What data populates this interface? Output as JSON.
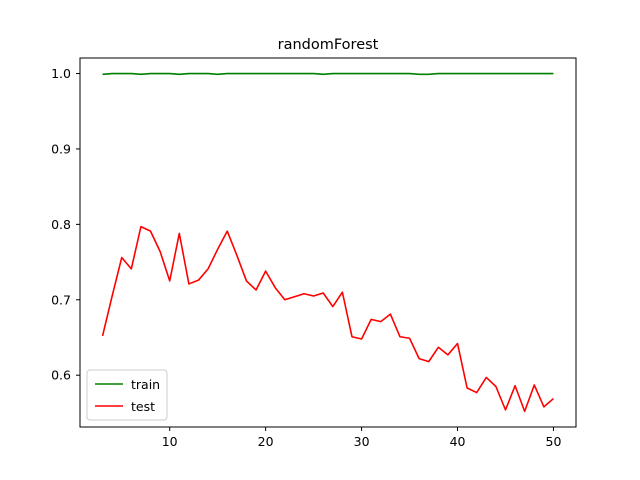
{
  "chart_data": {
    "type": "line",
    "title": "randomForest",
    "xlabel": "",
    "ylabel": "",
    "xlim": [
      0.65,
      52.35
    ],
    "ylim": [
      0.5313,
      1.0206
    ],
    "xticks": [
      10,
      20,
      30,
      40,
      50
    ],
    "yticks": [
      0.6,
      0.7,
      0.8,
      0.9,
      1.0
    ],
    "xtick_labels": [
      "10",
      "20",
      "30",
      "40",
      "50"
    ],
    "ytick_labels": [
      "0.6",
      "0.7",
      "0.8",
      "0.9",
      "1.0"
    ],
    "grid": false,
    "legend": "lower-left",
    "x": [
      3,
      4,
      5,
      6,
      7,
      8,
      9,
      10,
      11,
      12,
      13,
      14,
      15,
      16,
      17,
      18,
      19,
      20,
      21,
      22,
      23,
      24,
      25,
      26,
      27,
      28,
      29,
      30,
      31,
      32,
      33,
      34,
      35,
      36,
      37,
      38,
      39,
      40,
      41,
      42,
      43,
      44,
      45,
      46,
      47,
      48,
      49,
      50
    ],
    "series": [
      {
        "name": "train",
        "color": "#008000",
        "values": [
          0.999,
          1.0,
          1.0,
          1.0,
          0.999,
          1.0,
          1.0,
          1.0,
          0.999,
          1.0,
          1.0,
          1.0,
          0.999,
          1.0,
          1.0,
          1.0,
          1.0,
          1.0,
          1.0,
          1.0,
          1.0,
          1.0,
          1.0,
          0.999,
          1.0,
          1.0,
          1.0,
          1.0,
          1.0,
          1.0,
          1.0,
          1.0,
          1.0,
          0.999,
          0.999,
          1.0,
          1.0,
          1.0,
          1.0,
          1.0,
          1.0,
          1.0,
          1.0,
          1.0,
          1.0,
          1.0,
          1.0,
          1.0
        ]
      },
      {
        "name": "test",
        "color": "#ff0000",
        "values": [
          0.652,
          0.705,
          0.756,
          0.741,
          0.797,
          0.791,
          0.764,
          0.725,
          0.788,
          0.721,
          0.726,
          0.741,
          0.767,
          0.791,
          0.759,
          0.725,
          0.713,
          0.738,
          0.716,
          0.7,
          0.704,
          0.708,
          0.705,
          0.709,
          0.691,
          0.71,
          0.651,
          0.648,
          0.674,
          0.671,
          0.681,
          0.651,
          0.649,
          0.622,
          0.618,
          0.637,
          0.627,
          0.642,
          0.583,
          0.577,
          0.597,
          0.585,
          0.554,
          0.586,
          0.552,
          0.587,
          0.558,
          0.569
        ]
      }
    ]
  }
}
